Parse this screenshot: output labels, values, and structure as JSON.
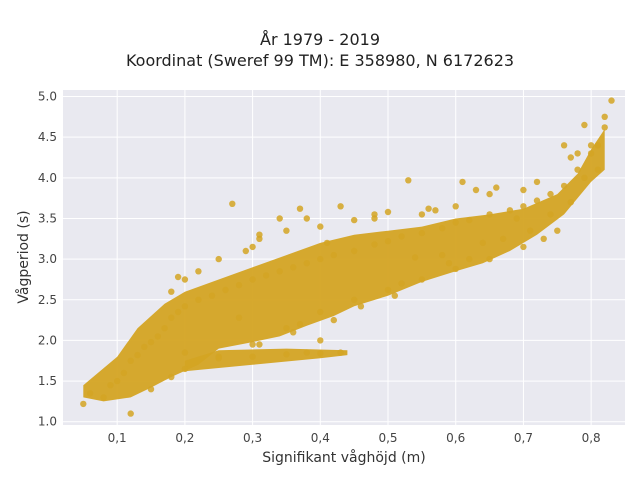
{
  "chart_data": {
    "type": "scatter",
    "title": "År 1979 - 2019",
    "subtitle": "Koordinat (Sweref 99 TM): E 358980, N 6172623",
    "xlabel": "Signifikant våghöjd (m)",
    "ylabel": "Vågperiod (s)",
    "xlim": [
      0.02,
      0.85
    ],
    "ylim": [
      0.96,
      5.08
    ],
    "xticks": [
      "0,1",
      "0,2",
      "0,3",
      "0,4",
      "0,5",
      "0,6",
      "0,7",
      "0,8"
    ],
    "xtick_values": [
      0.1,
      0.2,
      0.3,
      0.4,
      0.5,
      0.6,
      0.7,
      0.8
    ],
    "yticks": [
      "1.0",
      "1.5",
      "2.0",
      "2.5",
      "3.0",
      "3.5",
      "4.0",
      "4.5",
      "5.0"
    ],
    "ytick_values": [
      1.0,
      1.5,
      2.0,
      2.5,
      3.0,
      3.5,
      4.0,
      4.5,
      5.0
    ],
    "grid": true,
    "background": "#e9e9f0",
    "marker_color": "#d4a423",
    "series": [
      {
        "values": [
          [
            0.05,
            1.22
          ],
          [
            0.06,
            1.35
          ],
          [
            0.08,
            1.3
          ],
          [
            0.09,
            1.45
          ],
          [
            0.1,
            1.5
          ],
          [
            0.11,
            1.6
          ],
          [
            0.12,
            1.75
          ],
          [
            0.13,
            1.82
          ],
          [
            0.14,
            1.92
          ],
          [
            0.15,
            1.98
          ],
          [
            0.16,
            2.05
          ],
          [
            0.17,
            2.15
          ],
          [
            0.18,
            2.28
          ],
          [
            0.19,
            2.35
          ],
          [
            0.2,
            2.42
          ],
          [
            0.22,
            2.5
          ],
          [
            0.24,
            2.55
          ],
          [
            0.26,
            2.62
          ],
          [
            0.28,
            2.68
          ],
          [
            0.3,
            2.75
          ],
          [
            0.32,
            2.8
          ],
          [
            0.34,
            2.85
          ],
          [
            0.36,
            2.9
          ],
          [
            0.38,
            2.95
          ],
          [
            0.4,
            3.0
          ],
          [
            0.42,
            3.05
          ],
          [
            0.45,
            3.1
          ],
          [
            0.48,
            3.18
          ],
          [
            0.5,
            3.22
          ],
          [
            0.52,
            3.28
          ],
          [
            0.55,
            3.32
          ],
          [
            0.58,
            3.38
          ],
          [
            0.6,
            3.45
          ],
          [
            0.62,
            3.48
          ],
          [
            0.65,
            3.55
          ],
          [
            0.68,
            3.6
          ],
          [
            0.7,
            3.65
          ],
          [
            0.72,
            3.72
          ],
          [
            0.74,
            3.8
          ],
          [
            0.76,
            3.9
          ],
          [
            0.78,
            4.1
          ],
          [
            0.8,
            4.3
          ],
          [
            0.82,
            4.62
          ],
          [
            0.83,
            4.95
          ],
          [
            0.82,
            4.75
          ],
          [
            0.81,
            4.4
          ],
          [
            0.12,
            1.1
          ],
          [
            0.15,
            1.4
          ],
          [
            0.18,
            1.55
          ],
          [
            0.2,
            1.65
          ],
          [
            0.25,
            1.8
          ],
          [
            0.3,
            1.95
          ],
          [
            0.35,
            2.15
          ],
          [
            0.4,
            2.35
          ],
          [
            0.45,
            2.5
          ],
          [
            0.5,
            2.62
          ],
          [
            0.55,
            2.75
          ],
          [
            0.6,
            2.88
          ],
          [
            0.65,
            3.0
          ],
          [
            0.7,
            3.15
          ],
          [
            0.75,
            3.35
          ],
          [
            0.2,
            1.85
          ],
          [
            0.25,
            1.78
          ],
          [
            0.3,
            1.8
          ],
          [
            0.35,
            1.83
          ],
          [
            0.38,
            1.85
          ],
          [
            0.4,
            1.84
          ],
          [
            0.43,
            1.85
          ],
          [
            0.18,
            2.6
          ],
          [
            0.2,
            2.75
          ],
          [
            0.22,
            2.85
          ],
          [
            0.25,
            3.0
          ],
          [
            0.3,
            3.15
          ],
          [
            0.35,
            3.35
          ],
          [
            0.4,
            3.4
          ],
          [
            0.45,
            3.48
          ],
          [
            0.48,
            3.55
          ],
          [
            0.5,
            3.58
          ],
          [
            0.55,
            3.55
          ],
          [
            0.6,
            3.65
          ],
          [
            0.65,
            3.8
          ],
          [
            0.7,
            3.85
          ],
          [
            0.19,
            2.78
          ],
          [
            0.27,
            3.68
          ],
          [
            0.31,
            3.25
          ],
          [
            0.37,
            3.62
          ],
          [
            0.43,
            3.65
          ],
          [
            0.53,
            3.97
          ],
          [
            0.57,
            3.6
          ],
          [
            0.61,
            3.95
          ],
          [
            0.63,
            3.85
          ],
          [
            0.66,
            3.88
          ],
          [
            0.72,
            3.95
          ],
          [
            0.28,
            2.28
          ],
          [
            0.31,
            1.95
          ],
          [
            0.29,
            3.1
          ],
          [
            0.31,
            3.3
          ],
          [
            0.34,
            3.5
          ],
          [
            0.36,
            2.1
          ],
          [
            0.37,
            2.2
          ],
          [
            0.38,
            3.5
          ],
          [
            0.4,
            2.0
          ],
          [
            0.42,
            2.25
          ],
          [
            0.41,
            3.2
          ],
          [
            0.46,
            2.42
          ],
          [
            0.48,
            3.5
          ],
          [
            0.51,
            2.55
          ],
          [
            0.52,
            2.7
          ],
          [
            0.54,
            3.02
          ],
          [
            0.56,
            3.62
          ],
          [
            0.58,
            3.05
          ],
          [
            0.59,
            2.95
          ],
          [
            0.62,
            3.0
          ],
          [
            0.64,
            3.2
          ],
          [
            0.67,
            3.25
          ],
          [
            0.69,
            3.5
          ],
          [
            0.71,
            3.35
          ],
          [
            0.73,
            3.25
          ],
          [
            0.74,
            3.55
          ],
          [
            0.77,
            3.7
          ],
          [
            0.79,
            4.0
          ],
          [
            0.8,
            4.4
          ],
          [
            0.81,
            4.1
          ],
          [
            0.79,
            4.65
          ],
          [
            0.77,
            4.25
          ],
          [
            0.76,
            4.4
          ],
          [
            0.78,
            4.3
          ]
        ]
      }
    ]
  }
}
